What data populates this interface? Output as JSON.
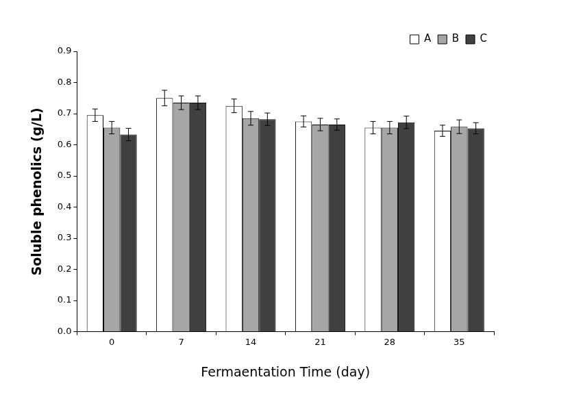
{
  "chart_data": {
    "type": "bar",
    "x_label": "Fermaentation Time (day)",
    "y_label": "Soluble phenolics (g/L)",
    "categories": [
      "0",
      "7",
      "14",
      "21",
      "28",
      "35"
    ],
    "series": [
      {
        "name": "A",
        "color": "#ffffff",
        "values": [
          0.695,
          0.75,
          0.725,
          0.675,
          0.655,
          0.645
        ],
        "errors": [
          0.02,
          0.025,
          0.022,
          0.018,
          0.02,
          0.018
        ]
      },
      {
        "name": "B",
        "color": "#a6a6a6",
        "values": [
          0.655,
          0.735,
          0.685,
          0.665,
          0.655,
          0.658
        ],
        "errors": [
          0.02,
          0.022,
          0.022,
          0.02,
          0.02,
          0.022
        ]
      },
      {
        "name": "C",
        "color": "#404040",
        "values": [
          0.633,
          0.735,
          0.682,
          0.665,
          0.672,
          0.653
        ],
        "errors": [
          0.02,
          0.022,
          0.02,
          0.018,
          0.02,
          0.018
        ]
      }
    ],
    "ylim": [
      0,
      0.9
    ],
    "yticks": [
      {
        "value": 0,
        "label": "0.0"
      },
      0.1,
      0.2,
      0.3,
      0.4,
      0.5,
      0.6,
      0.7,
      0.8,
      0.9
    ],
    "grid": false,
    "legend": "top-right"
  }
}
